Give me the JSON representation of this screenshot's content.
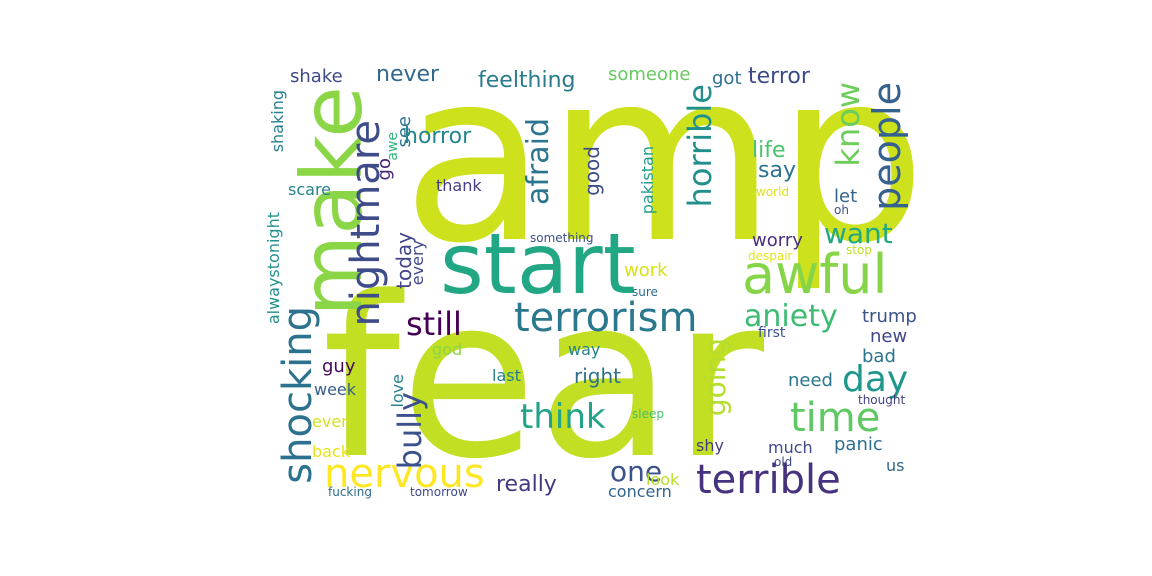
{
  "words": {
    "amp": {
      "text": "amp",
      "color": "#cde11d"
    },
    "fear": {
      "text": "fear",
      "color": "#c2df23"
    },
    "start": {
      "text": "start",
      "color": "#22a785"
    },
    "make": {
      "text": "make",
      "color": "#8bd646"
    },
    "awful": {
      "text": "awful",
      "color": "#86d549"
    },
    "terrorism": {
      "text": "terrorism",
      "color": "#2a788e"
    },
    "terrible": {
      "text": "terrible",
      "color": "#46327e"
    },
    "nervous": {
      "text": "nervous",
      "color": "#fde725"
    },
    "shocking": {
      "text": "shocking",
      "color": "#2c728e"
    },
    "nightmare": {
      "text": "nightmare",
      "color": "#3e4c8a"
    },
    "people": {
      "text": "people",
      "color": "#34618d"
    },
    "know": {
      "text": "know",
      "color": "#6ccd5a"
    },
    "horrible": {
      "text": "horrible",
      "color": "#21908d"
    },
    "afraid": {
      "text": "afraid",
      "color": "#2b758e"
    },
    "still": {
      "text": "still",
      "color": "#440154"
    },
    "time": {
      "text": "time",
      "color": "#5ec962"
    },
    "day": {
      "text": "day",
      "color": "#1f968b"
    },
    "think": {
      "text": "think",
      "color": "#20a386"
    },
    "bully": {
      "text": "bully",
      "color": "#3b518b"
    },
    "going": {
      "text": "going",
      "color": "#b5de2b"
    },
    "aniety": {
      "text": "aniety",
      "color": "#3fbc73"
    },
    "want": {
      "text": "want",
      "color": "#22a884"
    },
    "one": {
      "text": "one",
      "color": "#3b528b"
    },
    "really": {
      "text": "really",
      "color": "#443983"
    },
    "never": {
      "text": "never",
      "color": "#31688e"
    },
    "shake": {
      "text": "shake",
      "color": "#3e4a89"
    },
    "feelthing": {
      "text": "feelthing",
      "color": "#287c8e"
    },
    "someone": {
      "text": "someone",
      "color": "#65cb5e"
    },
    "got": {
      "text": "got",
      "color": "#2e6f8e"
    },
    "terror": {
      "text": "terror",
      "color": "#3e4989"
    },
    "see": {
      "text": "see",
      "color": "#2c738e"
    },
    "horror": {
      "text": "horror",
      "color": "#24878e"
    },
    "awe": {
      "text": "awe",
      "color": "#31b57b"
    },
    "go": {
      "text": "go",
      "color": "#482475"
    },
    "shaking": {
      "text": "shaking",
      "color": "#27808e"
    },
    "scare": {
      "text": "scare",
      "color": "#26828e"
    },
    "thank": {
      "text": "thank",
      "color": "#433e85"
    },
    "good": {
      "text": "good",
      "color": "#3d4d8a"
    },
    "pakistan": {
      "text": "pakistan",
      "color": "#1f9e89"
    },
    "life": {
      "text": "life",
      "color": "#4ac16d"
    },
    "say": {
      "text": "say",
      "color": "#2c738e"
    },
    "let": {
      "text": "let",
      "color": "#32648e"
    },
    "world": {
      "text": "world",
      "color": "#dde318"
    },
    "oh": {
      "text": "oh",
      "color": "#3b518b"
    },
    "something": {
      "text": "something",
      "color": "#3d4e8a"
    },
    "worry": {
      "text": "worry",
      "color": "#472f7d"
    },
    "despair": {
      "text": "despair",
      "color": "#e5e419"
    },
    "stop": {
      "text": "stop",
      "color": "#bddf26"
    },
    "today": {
      "text": "today",
      "color": "#414487"
    },
    "every": {
      "text": "every",
      "color": "#3f4889"
    },
    "alwaystonight": {
      "text": "alwaystonight",
      "color": "#21918c"
    },
    "work": {
      "text": "work",
      "color": "#d8e219"
    },
    "sure": {
      "text": "sure",
      "color": "#2f6b8e"
    },
    "trump": {
      "text": "trump",
      "color": "#3a538b"
    },
    "first": {
      "text": "first",
      "color": "#3b528b"
    },
    "new": {
      "text": "new",
      "color": "#3f4788"
    },
    "bad": {
      "text": "bad",
      "color": "#2b748e"
    },
    "guy": {
      "text": "guy",
      "color": "#46075a"
    },
    "god": {
      "text": "god",
      "color": "#8bd646"
    },
    "way": {
      "text": "way",
      "color": "#26828e"
    },
    "right": {
      "text": "right",
      "color": "#2d708e"
    },
    "need": {
      "text": "need",
      "color": "#2a778e"
    },
    "week": {
      "text": "week",
      "color": "#355e8d"
    },
    "last": {
      "text": "last",
      "color": "#277f8e"
    },
    "love": {
      "text": "love",
      "color": "#26818e"
    },
    "sleep": {
      "text": "sleep",
      "color": "#4ac16d"
    },
    "thought": {
      "text": "thought",
      "color": "#424186"
    },
    "even": {
      "text": "even",
      "color": "#d2e21b"
    },
    "shy": {
      "text": "shy",
      "color": "#443b84"
    },
    "much": {
      "text": "much",
      "color": "#3e4989"
    },
    "panic": {
      "text": "panic",
      "color": "#2d708e"
    },
    "back": {
      "text": "back",
      "color": "#e5e419"
    },
    "old": {
      "text": "old",
      "color": "#3e4989"
    },
    "us": {
      "text": "us",
      "color": "#31688e"
    },
    "look": {
      "text": "look",
      "color": "#b8de29"
    },
    "concern": {
      "text": "concern",
      "color": "#33628d"
    },
    "fucking": {
      "text": "fucking",
      "color": "#2e6e8e"
    },
    "tomorrow": {
      "text": "tomorrow",
      "color": "#3e4a89"
    }
  }
}
